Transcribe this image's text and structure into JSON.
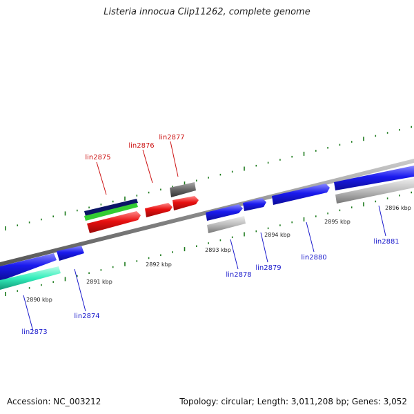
{
  "title": "Listeria innocua Clip11262, complete genome",
  "footer": {
    "accession": "Accession: NC_003212",
    "topology": "Topology: circular; Length: 3,011,208 bp; Genes: 3,052"
  },
  "colors": {
    "forward_gene": "#1a1aee",
    "reverse_gene": "#e01010",
    "rna_navy": "#0b1466",
    "rna_green": "#33cc33",
    "teal_gene": "#33eebb",
    "grey_gene": "#b8b8b8",
    "dark_grey_gene": "#666666",
    "backbone": "#8a8a8a",
    "tick": "#1b7a1b",
    "label_forward": "#1a1acc",
    "label_reverse": "#cc1111"
  },
  "kbp_labels": [
    "2890 kbp",
    "2891 kbp",
    "2892 kbp",
    "2893 kbp",
    "2894 kbp",
    "2895 kbp",
    "2896 kbp"
  ],
  "genes": [
    {
      "name": "lin2873",
      "strand": "forward"
    },
    {
      "name": "lin2874",
      "strand": "forward"
    },
    {
      "name": "lin2875",
      "strand": "reverse"
    },
    {
      "name": "lin2876",
      "strand": "reverse"
    },
    {
      "name": "lin2877",
      "strand": "reverse"
    },
    {
      "name": "lin2878",
      "strand": "forward"
    },
    {
      "name": "lin2879",
      "strand": "forward"
    },
    {
      "name": "lin2880",
      "strand": "forward"
    },
    {
      "name": "lin2881",
      "strand": "forward"
    }
  ]
}
